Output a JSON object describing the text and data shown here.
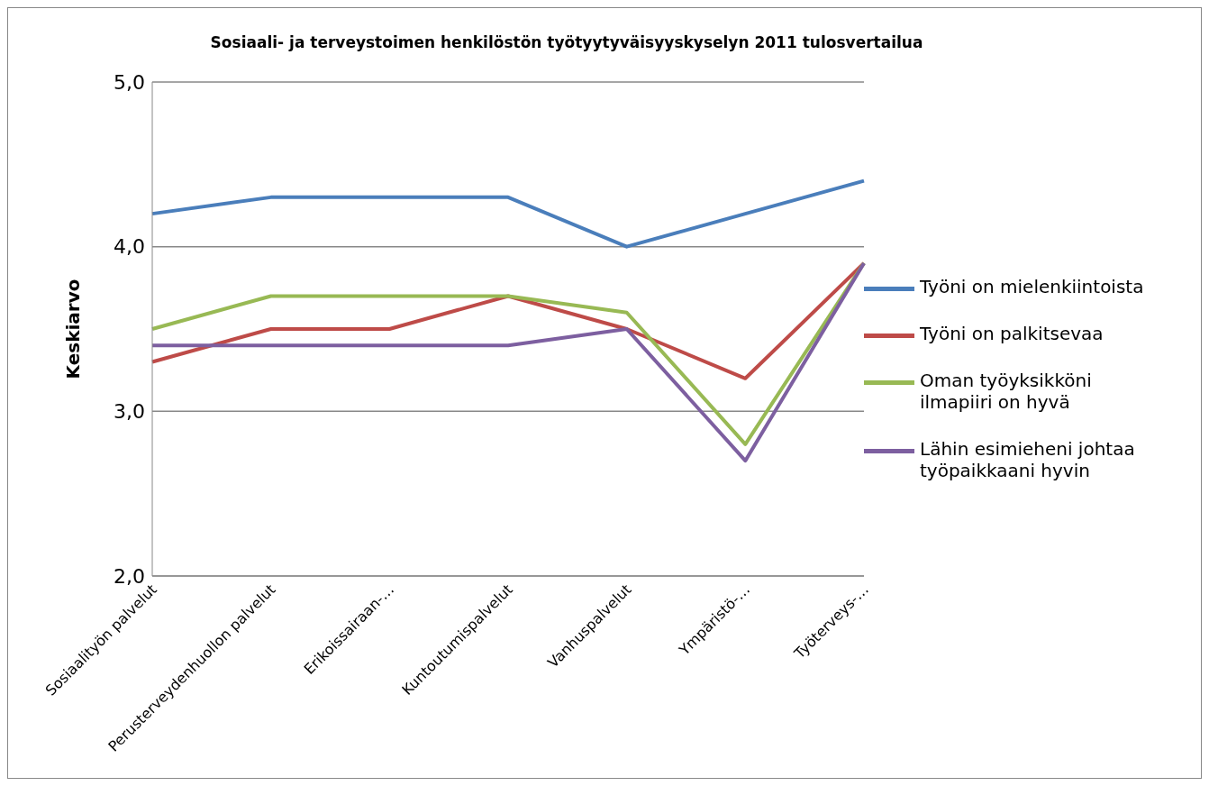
{
  "chart_data": {
    "type": "line",
    "title": "Sosiaali- ja terveystoimen henkilöstön työtyytyväisyyskyselyn 2011 tulosvertailua",
    "ylabel": "Keskiarvo",
    "categories": [
      "Sosiaalityön palvelut",
      "Perusterveydenhuollon palvelut",
      "Erikoissairaan-…",
      "Kuntoutumispalvelut",
      "Vanhuspalvelut",
      "Ympäristö-…",
      "Työterveys-…"
    ],
    "series": [
      {
        "name": "Työni on mielenkiintoista",
        "color": "#4a7ebb",
        "values": [
          4.2,
          4.3,
          4.3,
          4.3,
          4.0,
          4.2,
          4.4
        ]
      },
      {
        "name": "Työni on palkitsevaa",
        "color": "#be4b48",
        "values": [
          3.3,
          3.5,
          3.5,
          3.7,
          3.5,
          3.2,
          3.9
        ]
      },
      {
        "name": "Oman työyksikköni ilmapiiri on hyvä",
        "color": "#98b954",
        "values": [
          3.5,
          3.7,
          3.7,
          3.7,
          3.6,
          2.8,
          3.9
        ]
      },
      {
        "name": "Lähin esimieheni johtaa työpaikkaani hyvin",
        "color": "#7d5fa0",
        "values": [
          3.4,
          3.4,
          3.4,
          3.4,
          3.5,
          2.7,
          3.9
        ]
      }
    ],
    "ylim": [
      2,
      5
    ],
    "yticks": [
      {
        "value": 2,
        "label": "2,0"
      },
      {
        "value": 3,
        "label": "3,0"
      },
      {
        "value": 4,
        "label": "4,0"
      },
      {
        "value": 5,
        "label": "5,0"
      }
    ],
    "grid": "y",
    "legend": "right",
    "marker": "none",
    "line_style": "solid"
  }
}
